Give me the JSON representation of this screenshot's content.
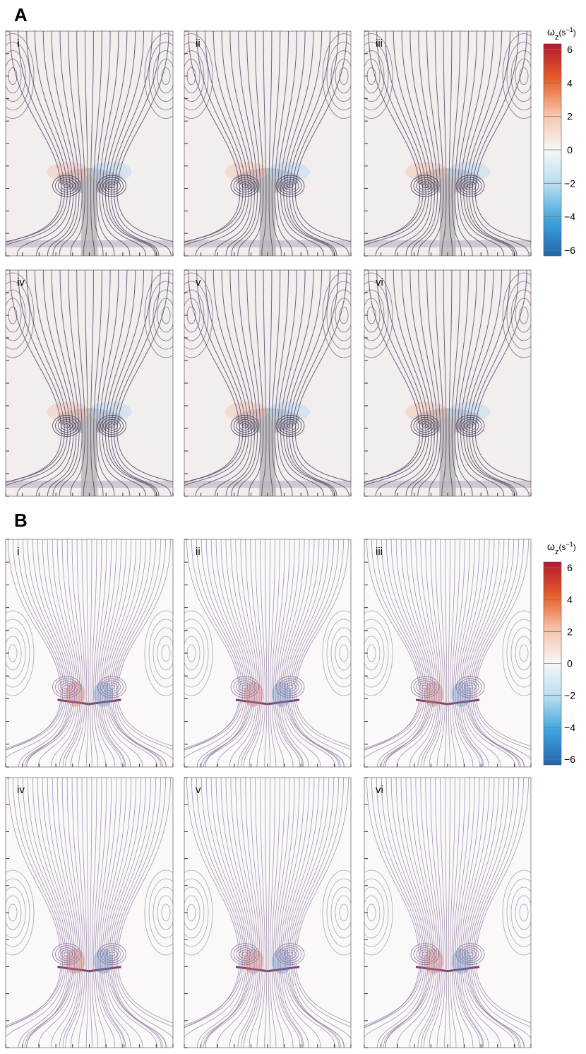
{
  "figure": {
    "panels": [
      {
        "label": "A",
        "subpanels": [
          "i",
          "ii",
          "iii",
          "iv",
          "v",
          "vi"
        ],
        "colorbar": {
          "symbol": "ω",
          "subscript": "z",
          "unit": "(s",
          "unit_exponent": "−1",
          "unit_close": ")",
          "ticks": [
            6,
            4,
            2,
            0,
            {
              "value": -2,
              "label": "−2"
            },
            {
              "value": -4,
              "label": "−4"
            },
            {
              "value": -6,
              "label": "−6"
            }
          ]
        }
      },
      {
        "label": "B",
        "subpanels": [
          "i",
          "ii",
          "iii",
          "iv",
          "v",
          "vi"
        ],
        "colorbar": {
          "symbol": "ω",
          "subscript": "z",
          "unit": "(s",
          "unit_exponent": "−1",
          "unit_close": ")",
          "ticks": [
            6,
            4,
            2,
            0,
            {
              "value": -2,
              "label": "−2"
            },
            {
              "value": -4,
              "label": "−4"
            },
            {
              "value": -6,
              "label": "−6"
            }
          ]
        }
      }
    ]
  }
}
